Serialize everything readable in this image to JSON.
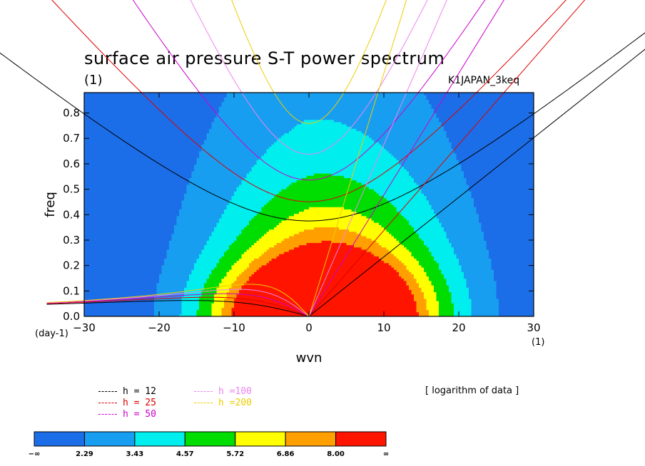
{
  "figure": {
    "title": "surface air pressure S-T power spectrum",
    "subtitle": "(1)",
    "run_name": "K1JAPAN_3keq",
    "note": "[ logarithm of data ]"
  },
  "chart_data": {
    "type": "heatmap",
    "xlabel": "wvn",
    "ylabel": "freq",
    "x_unit": "(1)",
    "y_unit": "(day-1)",
    "xlim": [
      -30,
      30
    ],
    "ylim": [
      0,
      0.88
    ],
    "x_ticks": [
      -30,
      -20,
      -10,
      0,
      10,
      20,
      30
    ],
    "y_ticks": [
      0.0,
      0.1,
      0.2,
      0.3,
      0.4,
      0.5,
      0.6,
      0.7,
      0.8
    ],
    "y_tick_labels": [
      "0.0",
      "0.1",
      "0.2",
      "0.3",
      "0.4",
      "0.5",
      "0.6",
      "0.7",
      "0.8"
    ],
    "color_levels": [
      "−∞",
      "2.29",
      "3.43",
      "4.57",
      "5.72",
      "6.86",
      "8.00",
      "∞"
    ],
    "colors": [
      "#1c6ee8",
      "#189ef0",
      "#00eeee",
      "#00dd00",
      "#ffff00",
      "#ffa000",
      "#ff1400"
    ],
    "dispersion_curves": [
      {
        "label": "h = 12",
        "h": 12,
        "color": "#000000"
      },
      {
        "label": "h = 25",
        "h": 25,
        "color": "#dd0000"
      },
      {
        "label": "h = 50",
        "h": 50,
        "color": "#cc00cc"
      },
      {
        "label": "h =100",
        "h": 100,
        "color": "#ee82ee"
      },
      {
        "label": "h =200",
        "h": 200,
        "color": "#eecc00"
      }
    ]
  }
}
